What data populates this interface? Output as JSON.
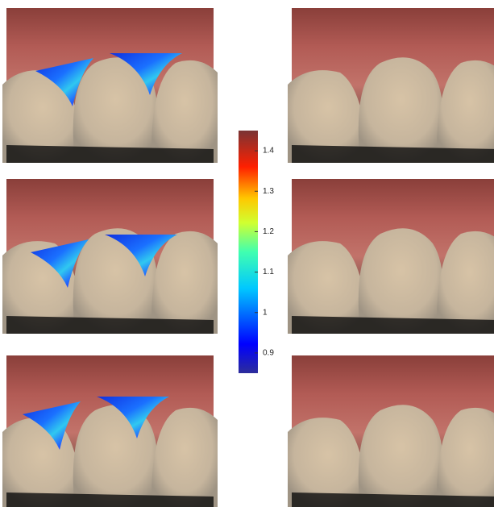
{
  "colorbar": {
    "lim": [
      0.85,
      1.45
    ],
    "ticks": [
      0.9,
      1,
      1.1,
      1.2,
      1.3,
      1.4
    ]
  }
}
